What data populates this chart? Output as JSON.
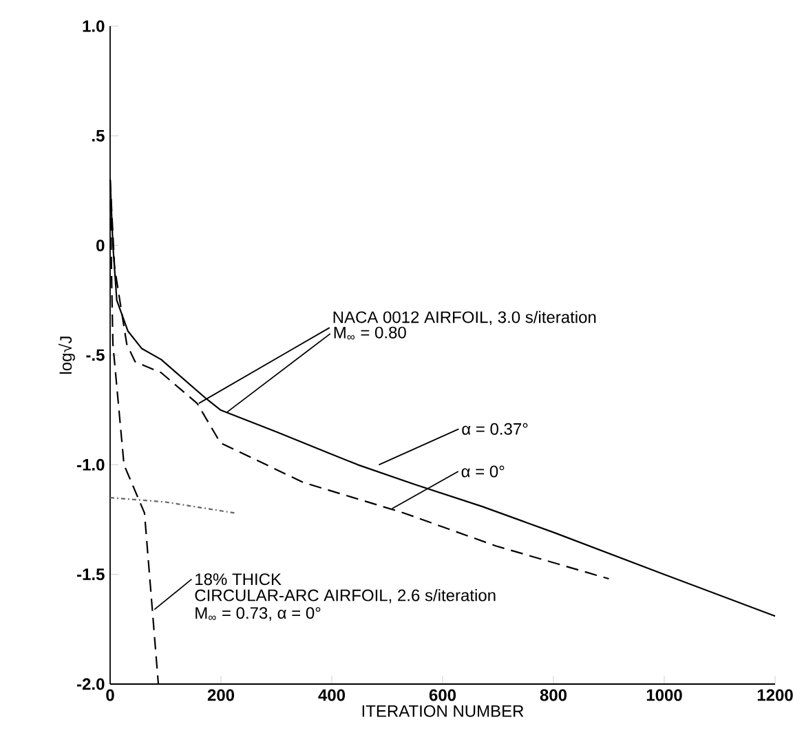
{
  "chart_data": {
    "type": "line",
    "xlabel": "ITERATION NUMBER",
    "ylabel": "log√J",
    "xlim": [
      0,
      1200
    ],
    "ylim": [
      -2.0,
      1.0
    ],
    "xticks": [
      0,
      200,
      400,
      600,
      800,
      1000,
      1200
    ],
    "yticks": [
      {
        "value": 1.0,
        "label": "1.0"
      },
      {
        "value": 0.5,
        "label": ".5"
      },
      0,
      {
        "value": -0.5,
        "label": "-.5"
      },
      {
        "value": -1.0,
        "label": "-1.0"
      },
      {
        "value": -1.5,
        "label": "-1.5"
      },
      {
        "value": -2.0,
        "label": "-2.0"
      }
    ],
    "grid": false,
    "series": [
      {
        "color": "#000000",
        "line_style": "solid",
        "x": [
          0,
          5,
          12,
          32,
          57,
          92,
          174,
          199,
          300,
          398,
          447,
          550,
          671,
          802,
          1000,
          1200
        ],
        "values": [
          0.3,
          0.0,
          -0.25,
          -0.39,
          -0.47,
          -0.52,
          -0.7,
          -0.75,
          -0.85,
          -0.95,
          -1.0,
          -1.09,
          -1.19,
          -1.31,
          -1.5,
          -1.69
        ]
      },
      {
        "color": "#000000",
        "line_style": "dashed",
        "x": [
          0,
          8,
          30,
          45,
          92,
          157,
          199,
          348,
          530,
          696,
          900
        ],
        "values": [
          0.3,
          -0.1,
          -0.45,
          -0.53,
          -0.58,
          -0.72,
          -0.9,
          -1.08,
          -1.22,
          -1.37,
          -1.52
        ]
      },
      {
        "color": "#000000",
        "line_style": "dashed",
        "x": [
          0,
          3,
          5,
          25,
          62,
          87
        ],
        "values": [
          0.3,
          -0.2,
          -0.45,
          -1.0,
          -1.22,
          -2.0
        ]
      },
      {
        "color": "#666666",
        "line_style": "dotted",
        "x": [
          0,
          100,
          200,
          225
        ],
        "values": [
          -1.15,
          -1.17,
          -1.21,
          -1.22
        ]
      }
    ],
    "annotations": [
      {
        "text": "NACA 0012 AIRFOIL, 3.0 s/iteration",
        "x": 160,
        "y": -0.72
      },
      {
        "text": "M$_{∞}$ = 0.80",
        "x": 211,
        "y": -0.76
      },
      {
        "text": "α = 0.37°",
        "x": 485,
        "y": -1.0
      },
      {
        "text": "α = 0°",
        "x": 509,
        "y": -1.2
      },
      {
        "text": "18% THICK",
        "x": 80,
        "y": -1.66
      },
      "CIRCULAR-ARC AIRFOIL, 2.6 s/iteration",
      "M$_{∞}$ = 0.73, α = 0°"
    ]
  }
}
